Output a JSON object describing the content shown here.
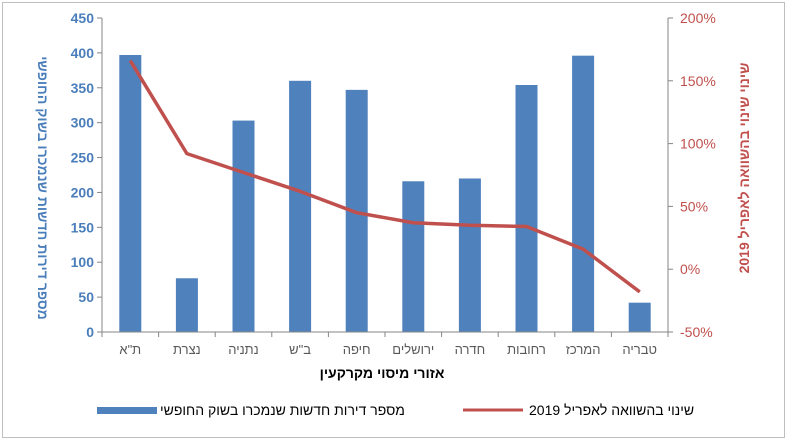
{
  "chart_data": {
    "type": "bar+line",
    "categories": [
      "ת\"א",
      "נצרת",
      "נתניה",
      "ב\"ש",
      "חיפה",
      "ירושלים",
      "חדרה",
      "רחובות",
      "המרכז",
      "טבריה"
    ],
    "series": [
      {
        "name": "מספר דירות חדשות שנמכרו בשוק החופשי",
        "type": "bar",
        "axis": "left",
        "color": "#4f81bd",
        "values": [
          397,
          77,
          303,
          360,
          347,
          216,
          220,
          354,
          396,
          42
        ]
      },
      {
        "name": "שינוי בהשוואה לאפריל 2019",
        "type": "line",
        "axis": "right",
        "color": "#c0504d",
        "values": [
          166,
          92,
          77,
          62,
          45,
          37,
          35,
          34,
          16,
          -18
        ]
      }
    ],
    "xlabel": "אזורי מיסוי מקרקעין",
    "ylabel_left": "מספר דירות חדשות שנמכרו בשוק החופשי",
    "ylabel_right": "שינוי  שינוי  בהשוואה לאפריל 2019",
    "ylim_left": [
      0,
      450
    ],
    "yticks_left": [
      "0",
      "50",
      "100",
      "150",
      "200",
      "250",
      "300",
      "350",
      "400",
      "450"
    ],
    "ylim_right": [
      -50,
      200
    ],
    "yticks_right": [
      "-50%",
      "0%",
      "50%",
      "100%",
      "150%",
      "200%"
    ],
    "legend_position": "bottom",
    "grid": false
  }
}
